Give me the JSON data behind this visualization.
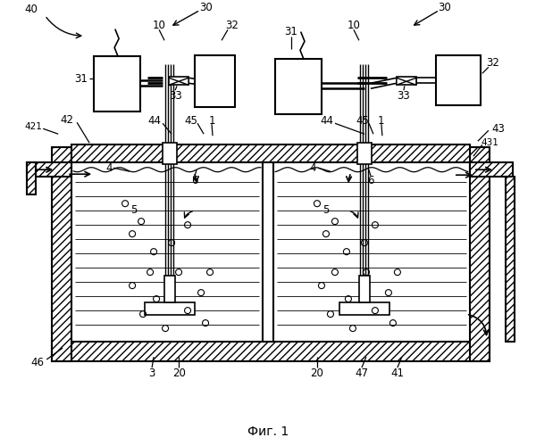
{
  "title": "Фиг. 1",
  "bg": "#ffffff"
}
